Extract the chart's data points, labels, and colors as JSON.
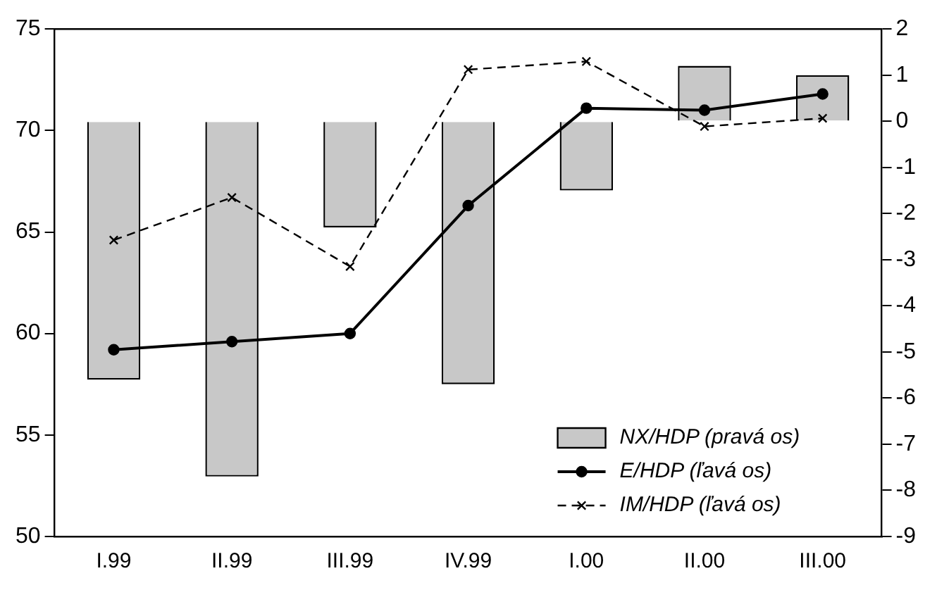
{
  "chart_data": {
    "type": "bar",
    "categories": [
      "I.99",
      "II.99",
      "III.99",
      "IV.99",
      "I.00",
      "II.00",
      "III.00"
    ],
    "series": [
      {
        "name": "NX/HDP (pravá os)",
        "axis": "y2",
        "color": "#c8c8c8",
        "values": [
          -5.6,
          -7.7,
          -2.3,
          -5.7,
          -1.5,
          1.2,
          1.0
        ]
      },
      {
        "name": "E/HDP (ľavá os)",
        "type": "line",
        "color": "#000000",
        "marker": "circle",
        "line_style": "solid",
        "values": [
          59.2,
          59.6,
          60.0,
          66.3,
          71.1,
          71.0,
          71.8
        ]
      },
      {
        "name": "IM/HDP (ľavá os)",
        "type": "line",
        "color": "#000000",
        "marker": "cross",
        "line_style": "dashed",
        "values": [
          64.6,
          66.7,
          63.3,
          73.0,
          73.4,
          70.2,
          70.6
        ]
      }
    ],
    "ylim": [
      50,
      75
    ],
    "yticks": [
      50,
      55,
      60,
      65,
      70,
      75
    ],
    "y2lim": [
      -9,
      2
    ],
    "y2ticks": [
      -9,
      -8,
      -7,
      -6,
      -5,
      -4,
      -3,
      -2,
      -1,
      0,
      1,
      2
    ],
    "grid": false,
    "legend": "bottom right"
  }
}
